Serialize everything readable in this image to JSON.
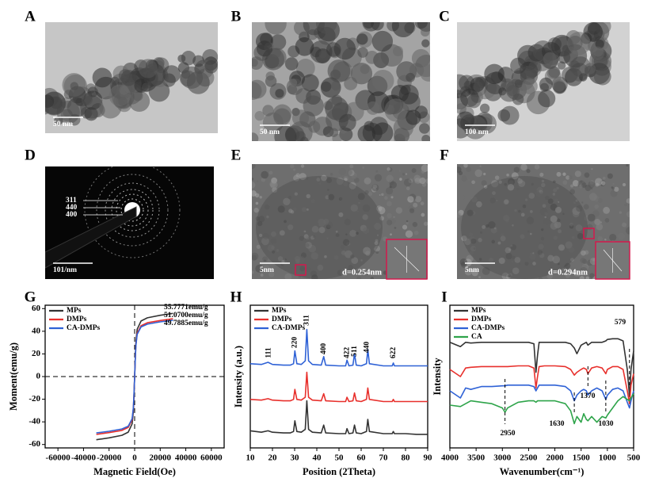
{
  "panels": [
    {
      "letter": "A",
      "scale_bar": "50 nm"
    },
    {
      "letter": "B",
      "scale_bar": "50 nm"
    },
    {
      "letter": "C",
      "scale_bar": "100 nm"
    },
    {
      "letter": "D",
      "scale_bar": "101/nm",
      "rings": [
        "311",
        "440",
        "400"
      ]
    },
    {
      "letter": "E",
      "scale_bar": "5nm",
      "d_spacing": "d=0.254nm"
    },
    {
      "letter": "F",
      "scale_bar": "5nm",
      "d_spacing": "d=0.294nm"
    }
  ],
  "chart_data": [
    {
      "type": "line",
      "panel_label": "G",
      "x_label": "Magnetic Field(Oe)",
      "y_label": "Moment(emu/g)",
      "x": [
        -30000,
        -20000,
        -10000,
        -5000,
        -2000,
        -1000,
        -500,
        0,
        500,
        1000,
        2000,
        5000,
        10000,
        20000,
        30000
      ],
      "series": [
        {
          "name": "MPs",
          "color": "#333333",
          "values": [
            -55.8,
            -54.1,
            -51.9,
            -49.1,
            -41.8,
            -30.7,
            -16.7,
            0,
            16.7,
            30.7,
            41.8,
            49.1,
            51.9,
            54.1,
            55.8
          ]
        },
        {
          "name": "DMPs",
          "color": "#e8302c",
          "values": [
            -51.1,
            -49.5,
            -47.5,
            -44.9,
            -38.3,
            -28.1,
            -15.3,
            0,
            15.3,
            28.1,
            38.3,
            44.9,
            47.5,
            49.5,
            51.1
          ]
        },
        {
          "name": "CA-DMPs",
          "color": "#2f62d6",
          "values": [
            -49.8,
            -48.3,
            -46.3,
            -43.8,
            -37.3,
            -27.4,
            -14.9,
            0,
            14.9,
            27.4,
            37.3,
            43.8,
            46.3,
            48.3,
            49.8
          ]
        }
      ],
      "annotations": [
        "55.7771emu/g",
        "51.0700emu/g",
        "49.7885emu/g"
      ],
      "xlim": [
        -70000,
        70000
      ],
      "xticks": [
        -60000,
        -40000,
        -20000,
        0,
        20000,
        40000,
        60000
      ],
      "ylim": [
        -63,
        63
      ],
      "yticks": [
        -60,
        -40,
        -20,
        0,
        20,
        40,
        60
      ],
      "zero_lines": true,
      "legend": "upper left"
    },
    {
      "type": "line",
      "panel_label": "H",
      "x_label": "Position (2Theta)",
      "y_label": "Intensity (a.u.)",
      "x": [
        10,
        15,
        18,
        20,
        25,
        28,
        29.5,
        30.1,
        31,
        33,
        34.8,
        35.5,
        36.3,
        38,
        42,
        43.1,
        44,
        50,
        53,
        53.6,
        54.5,
        56.3,
        57,
        57.8,
        60,
        62.4,
        63,
        63.7,
        70,
        74,
        74.5,
        75,
        80,
        85,
        90
      ],
      "series": [
        {
          "name": "MPs",
          "color": "#333333",
          "values": [
            12,
            11,
            12,
            11,
            10.5,
            10.5,
            11.5,
            19,
            11.5,
            11,
            13,
            33,
            13,
            11,
            10.5,
            16,
            10.5,
            10,
            10,
            13.5,
            10,
            10.5,
            16,
            10.5,
            10,
            11.5,
            20,
            11.5,
            10,
            10,
            11.5,
            10,
            10,
            9.5,
            9.5
          ]
        },
        {
          "name": "DMPs",
          "color": "#e8302c",
          "values": [
            34,
            33.5,
            34.5,
            33.5,
            33,
            33,
            34,
            41,
            34,
            33.5,
            35.5,
            53,
            35.5,
            33.5,
            33,
            38,
            33,
            32.5,
            32.5,
            35.5,
            32.5,
            33,
            38.5,
            33,
            32.5,
            34,
            42,
            34,
            32.5,
            32.5,
            34,
            32.5,
            32.5,
            32.5,
            32.5
          ]
        },
        {
          "name": "CA-DMPs",
          "color": "#2f62d6",
          "values": [
            59,
            58.5,
            60,
            58.5,
            58,
            58,
            59,
            68,
            59,
            58.5,
            61,
            83,
            61,
            58.5,
            58,
            64,
            58,
            57.5,
            57.5,
            61.5,
            57.5,
            58,
            66,
            58,
            57.5,
            59,
            69,
            59,
            57.5,
            57.5,
            59.5,
            57.5,
            57.5,
            57.5,
            57.5
          ]
        }
      ],
      "peaks": [
        {
          "label": "111",
          "x": 18.3
        },
        {
          "label": "220",
          "x": 30.1
        },
        {
          "label": "311",
          "x": 35.5
        },
        {
          "label": "400",
          "x": 43.1
        },
        {
          "label": "422",
          "x": 53.6
        },
        {
          "label": "511",
          "x": 57
        },
        {
          "label": "440",
          "x": 62.6
        },
        {
          "label": "622",
          "x": 74.5
        }
      ],
      "xlim": [
        10,
        90
      ],
      "xticks": [
        10,
        20,
        30,
        40,
        50,
        60,
        70,
        80,
        90
      ],
      "ylim": [
        0,
        100
      ],
      "legend": "upper left"
    },
    {
      "type": "line",
      "panel_label": "I",
      "x_label": "Wavenumber(cm⁻¹)",
      "y_label": "Intensity",
      "x": [
        4000,
        3800,
        3700,
        3600,
        3400,
        3200,
        3000,
        2950,
        2900,
        2700,
        2500,
        2400,
        2360,
        2330,
        2300,
        2200,
        2000,
        1800,
        1700,
        1630,
        1580,
        1500,
        1450,
        1400,
        1370,
        1300,
        1200,
        1100,
        1030,
        1000,
        900,
        800,
        700,
        620,
        579,
        550,
        500
      ],
      "series": [
        {
          "name": "MPs",
          "color": "#333333",
          "values": [
            74,
            71,
            74,
            73.5,
            74,
            74,
            74,
            74,
            74,
            74,
            74,
            73,
            53,
            65,
            74,
            74,
            74,
            74,
            73,
            70,
            66,
            72,
            73,
            74,
            72,
            74,
            74,
            74,
            75,
            76,
            76.5,
            76.5,
            75,
            55,
            36,
            55,
            68
          ]
        },
        {
          "name": "DMPs",
          "color": "#e8302c",
          "values": [
            55,
            50,
            56,
            56.5,
            57,
            57,
            57,
            57,
            57,
            57.5,
            57.5,
            56,
            42,
            50,
            57,
            57.5,
            57.5,
            57,
            55,
            51,
            53,
            55,
            56,
            55,
            52,
            56,
            57,
            56,
            52,
            55,
            57,
            57,
            55,
            40,
            31,
            44,
            52
          ]
        },
        {
          "name": "CA-DMPs",
          "color": "#2f62d6",
          "values": [
            40,
            35,
            42,
            41,
            43,
            43,
            43.5,
            43.5,
            44,
            44,
            44,
            43,
            40,
            42,
            44,
            44,
            44,
            43,
            40,
            33,
            37,
            40,
            41,
            40,
            37,
            40,
            42,
            40,
            34,
            37,
            41,
            42,
            40,
            32,
            28,
            33,
            40
          ]
        },
        {
          "name": "CA",
          "color": "#2ea44a",
          "values": [
            30,
            29,
            31,
            33,
            32,
            31,
            28,
            25,
            28,
            32,
            33,
            33,
            32,
            33,
            33,
            33,
            33,
            31,
            26,
            17,
            22,
            18,
            24,
            20,
            19,
            22,
            18,
            22,
            21,
            23,
            28,
            33,
            36,
            34,
            33,
            35,
            38
          ]
        }
      ],
      "annotations": [
        {
          "value": 579,
          "label": "579"
        },
        {
          "value": 1370,
          "label": "1370"
        },
        {
          "value": 1030,
          "label": "1030"
        },
        {
          "value": 2950,
          "label": "2950"
        },
        {
          "value": 1630,
          "label": "1630"
        }
      ],
      "xlim": [
        4000,
        500
      ],
      "xticks": [
        4000,
        3500,
        3000,
        2500,
        2000,
        1500,
        1000,
        500
      ],
      "ylim": [
        0,
        100
      ],
      "legend": "upper left"
    }
  ]
}
